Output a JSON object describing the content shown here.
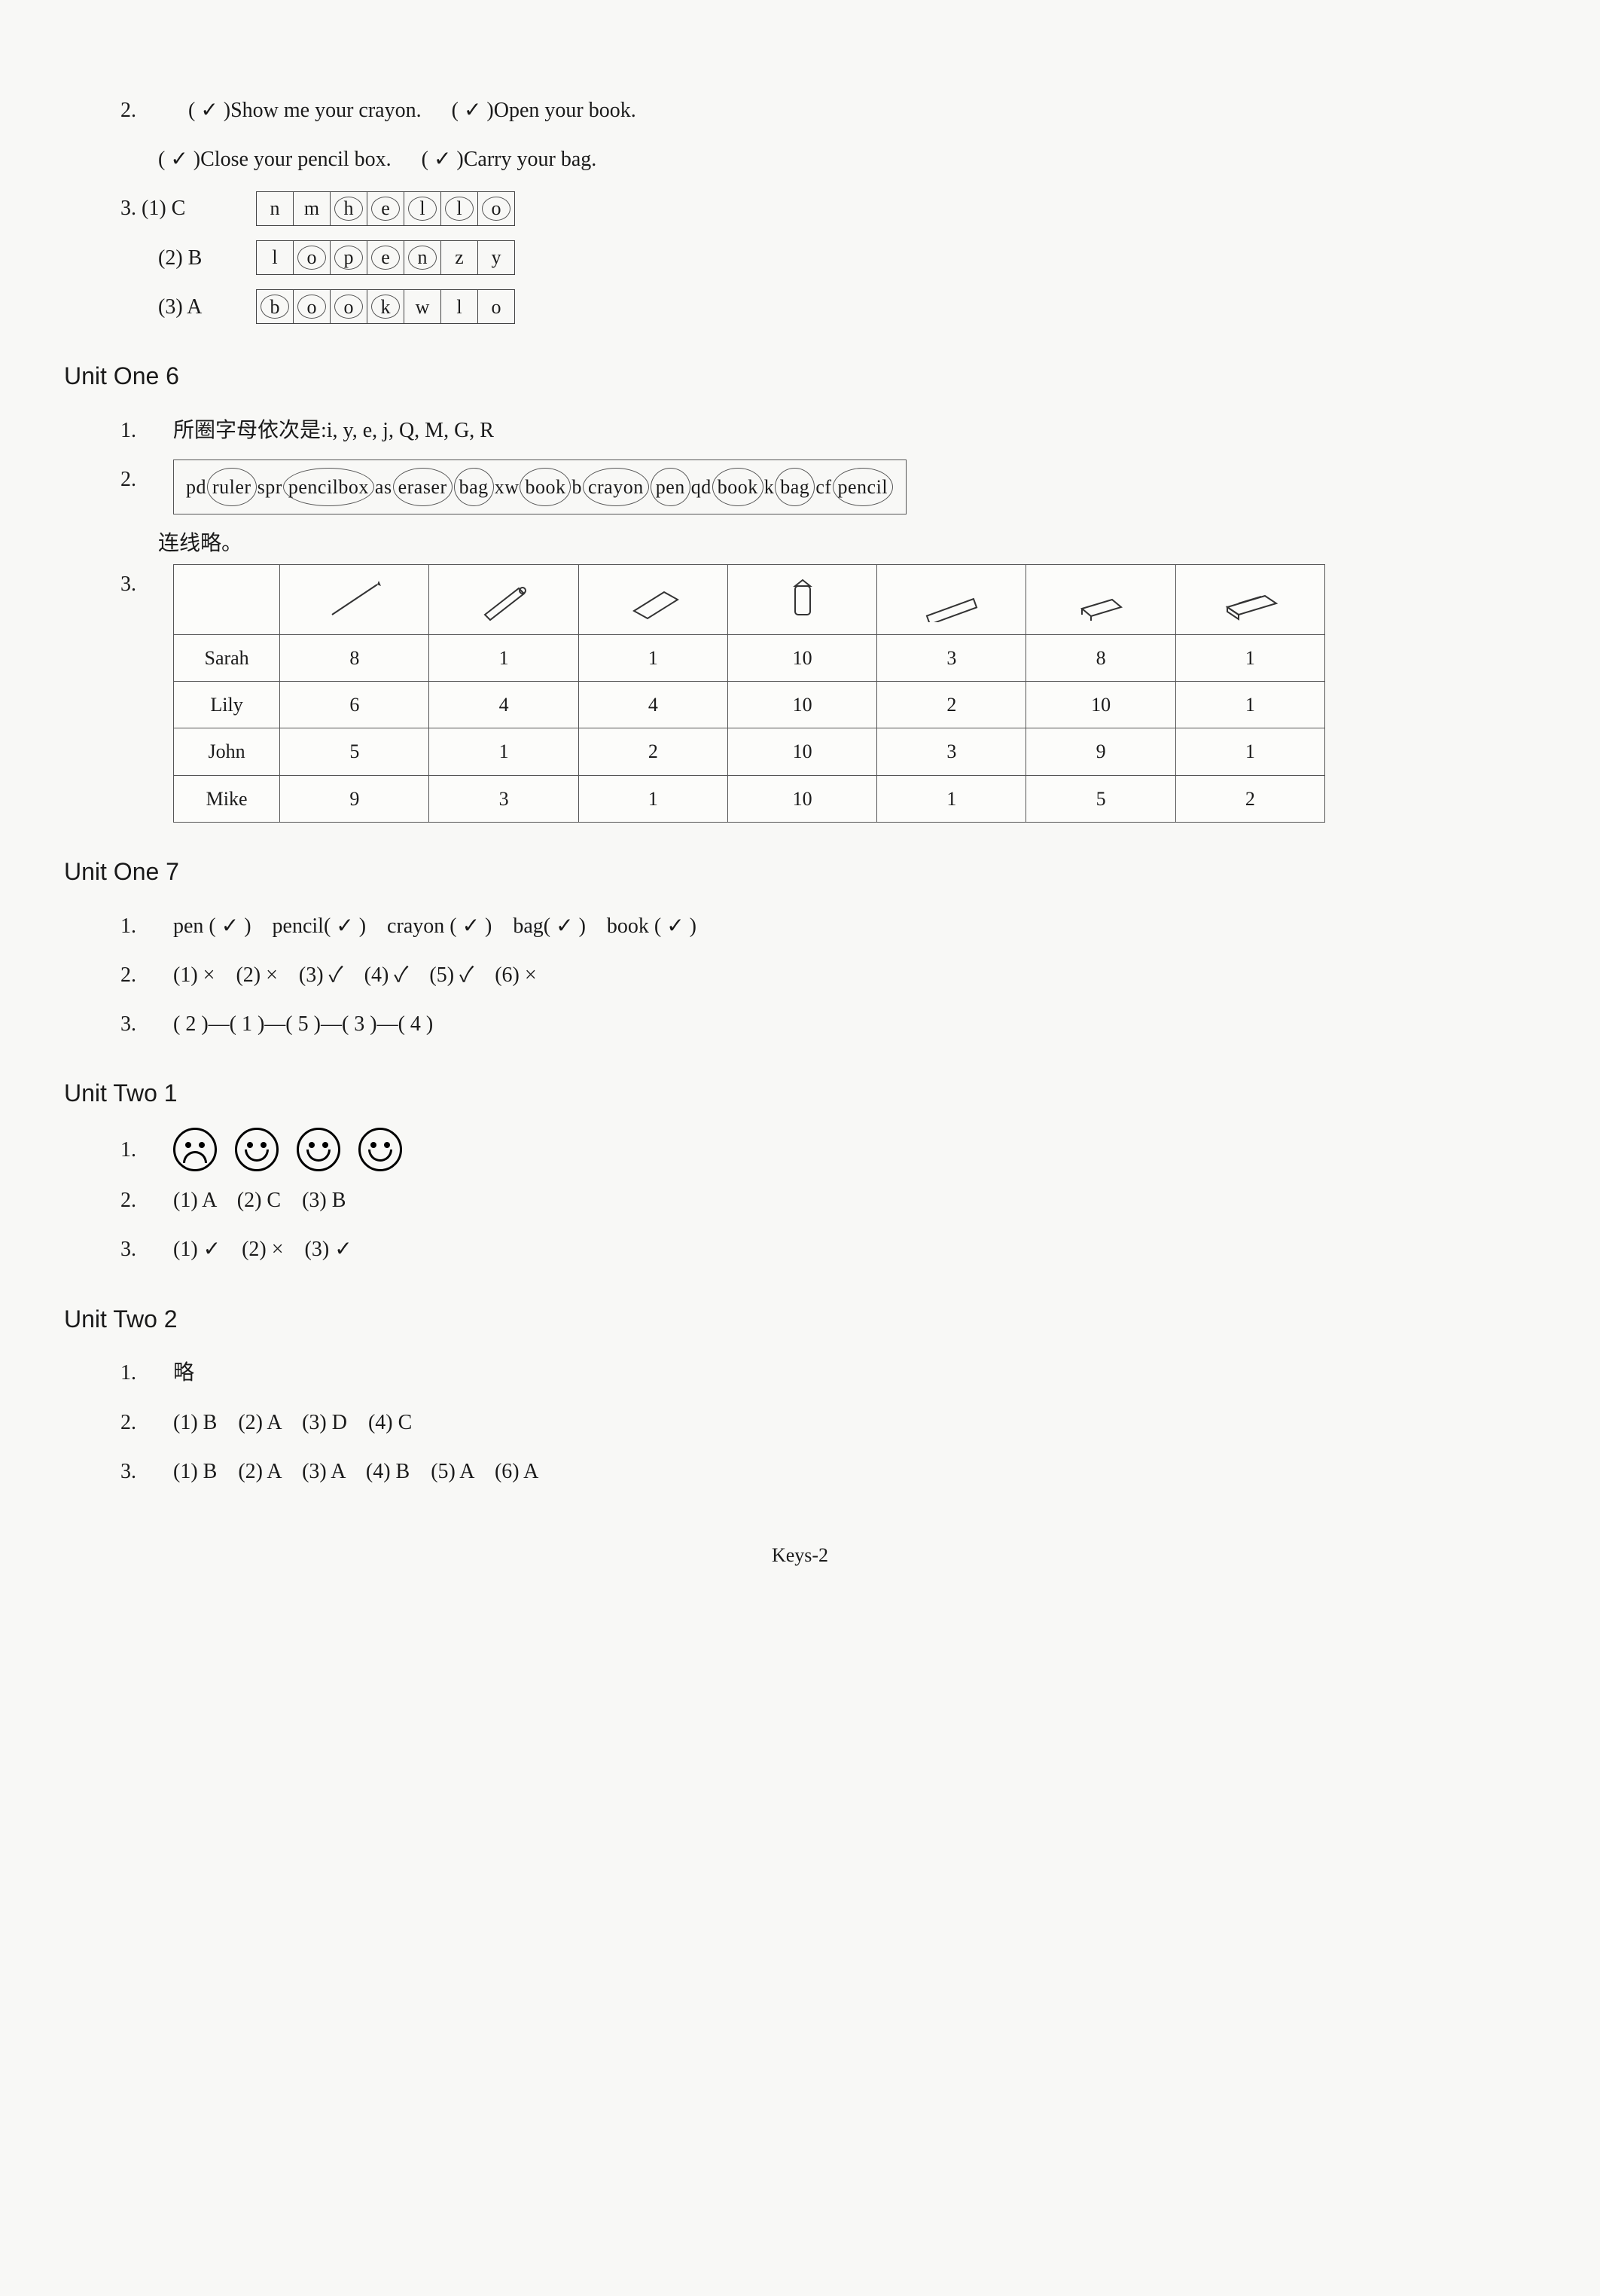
{
  "top": {
    "q2_items": [
      "( ✓ )Show me your crayon.",
      "( ✓ )Open your book.",
      "( ✓ )Close your pencil box.",
      "( ✓ )Carry your bag."
    ],
    "q3": {
      "rows": [
        {
          "label": "(1) C",
          "letters": [
            "n",
            "m",
            "h",
            "e",
            "l",
            "l",
            "o"
          ],
          "circled_start": 2,
          "circled_end": 6
        },
        {
          "label": "(2) B",
          "letters": [
            "l",
            "o",
            "p",
            "e",
            "n",
            "z",
            "y"
          ],
          "circled_start": 1,
          "circled_end": 4
        },
        {
          "label": "(3) A",
          "letters": [
            "b",
            "o",
            "o",
            "k",
            "w",
            "l",
            "o"
          ],
          "circled_start": 0,
          "circled_end": 3
        }
      ]
    }
  },
  "unit_one_6": {
    "title": "Unit One 6",
    "q1": "所圈字母依次是:i, y, e, j, Q, M, G, R",
    "q2_segments": [
      {
        "t": "pd",
        "c": 0
      },
      {
        "t": "ruler",
        "c": 1
      },
      {
        "t": "spr",
        "c": 0
      },
      {
        "t": "pencilbox",
        "c": 1
      },
      {
        "t": "as",
        "c": 0
      },
      {
        "t": "eraser",
        "c": 1
      },
      {
        "t": "bag",
        "c": 1
      },
      {
        "t": "xw",
        "c": 0
      },
      {
        "t": "book",
        "c": 1
      },
      {
        "t": "b",
        "c": 0
      },
      {
        "t": "crayon",
        "c": 1
      },
      {
        "t": "pen",
        "c": 1
      },
      {
        "t": "qd",
        "c": 0
      },
      {
        "t": "book",
        "c": 1
      },
      {
        "t": "k",
        "c": 0
      },
      {
        "t": "bag",
        "c": 1
      },
      {
        "t": "cf",
        "c": 0
      },
      {
        "t": "pencil",
        "c": 1
      }
    ],
    "q2_note": "连线略。",
    "table": {
      "icons": [
        "pencil",
        "pen",
        "eraser",
        "crayon",
        "ruler",
        "book",
        "pencilbox"
      ],
      "rows": [
        {
          "name": "Sarah",
          "vals": [
            8,
            1,
            1,
            10,
            3,
            8,
            1
          ]
        },
        {
          "name": "Lily",
          "vals": [
            6,
            4,
            4,
            10,
            2,
            10,
            1
          ]
        },
        {
          "name": "John",
          "vals": [
            5,
            1,
            2,
            10,
            3,
            9,
            1
          ]
        },
        {
          "name": "Mike",
          "vals": [
            9,
            3,
            1,
            10,
            1,
            5,
            2
          ]
        }
      ]
    }
  },
  "unit_one_7": {
    "title": "Unit One 7",
    "q1": "pen ( ✓ )　pencil( ✓ )　crayon ( ✓ )　bag( ✓ )　book ( ✓ )",
    "q2": "(1) ×　(2) ×　(3) ✓　(4) ✓　(5) ✓　(6) ×",
    "q3": "( 2 )—( 1 )—( 5 )—( 3 )—( 4 )"
  },
  "unit_two_1": {
    "title": "Unit Two 1",
    "faces": [
      "sad",
      "happy",
      "happy",
      "happy"
    ],
    "q2": "(1) A　(2) C　(3) B",
    "q3": "(1) ✓　(2) ×　(3) ✓"
  },
  "unit_two_2": {
    "title": "Unit Two 2",
    "q1": "略",
    "q2": "(1) B　(2) A　(3) D　(4) C",
    "q3": "(1) B　(2) A　(3) A　(4) B　(5) A　(6) A"
  },
  "footer": "Keys-2",
  "labels": {
    "n1": "1.",
    "n2": "2.",
    "n3": "3."
  },
  "colors": {
    "text": "#1a1a1a",
    "border": "#555555",
    "background": "#f8f8f6"
  }
}
